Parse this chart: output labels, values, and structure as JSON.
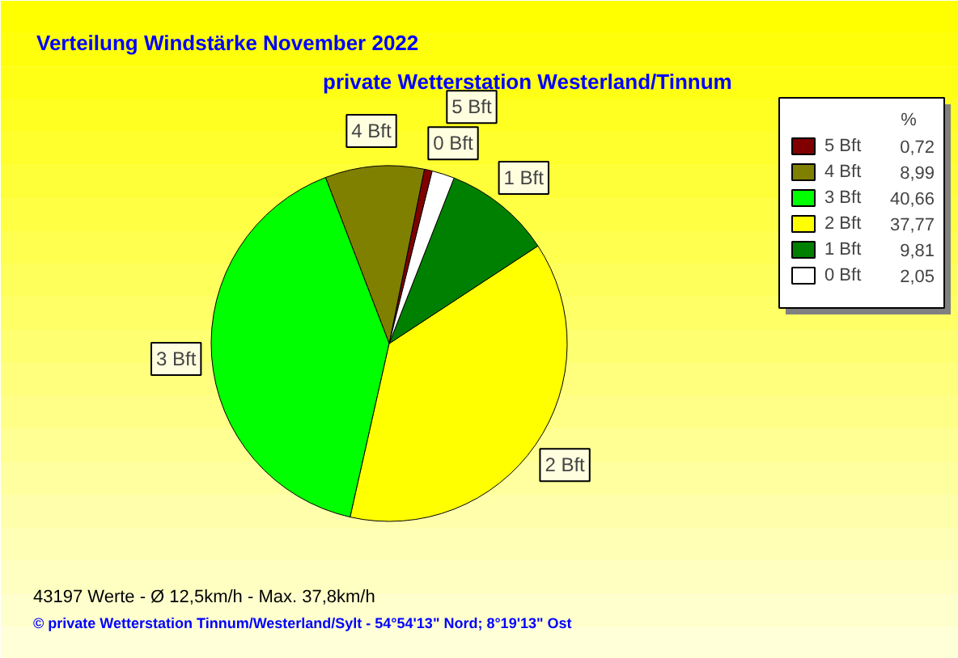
{
  "chart_data": {
    "type": "pie",
    "title": "Verteilung Windstärke  November 2022",
    "subtitle": "private Wetterstation Westerland/Tinnum",
    "legend_title": "%",
    "legend": "top right",
    "categories": [
      "5 Bft",
      "4 Bft",
      "3 Bft",
      "2 Bft",
      "1 Bft",
      "0 Bft"
    ],
    "values": [
      0.72,
      8.99,
      40.66,
      37.77,
      9.81,
      2.05
    ],
    "value_labels": [
      "0,72",
      "8,99",
      "40,66",
      "37,77",
      "9,81",
      "2,05"
    ],
    "colors": [
      "#800000",
      "#808000",
      "#00ff00",
      "#ffff00",
      "#008000",
      "#ffffff"
    ],
    "annotations": [
      "43197 Werte   -   Ø 12,5km/h  -  Max. 37,8km/h",
      "© private Wetterstation Tinnum/Westerland/Sylt   -   54°54'13\" Nord; 8°19'13\" Ost"
    ]
  }
}
